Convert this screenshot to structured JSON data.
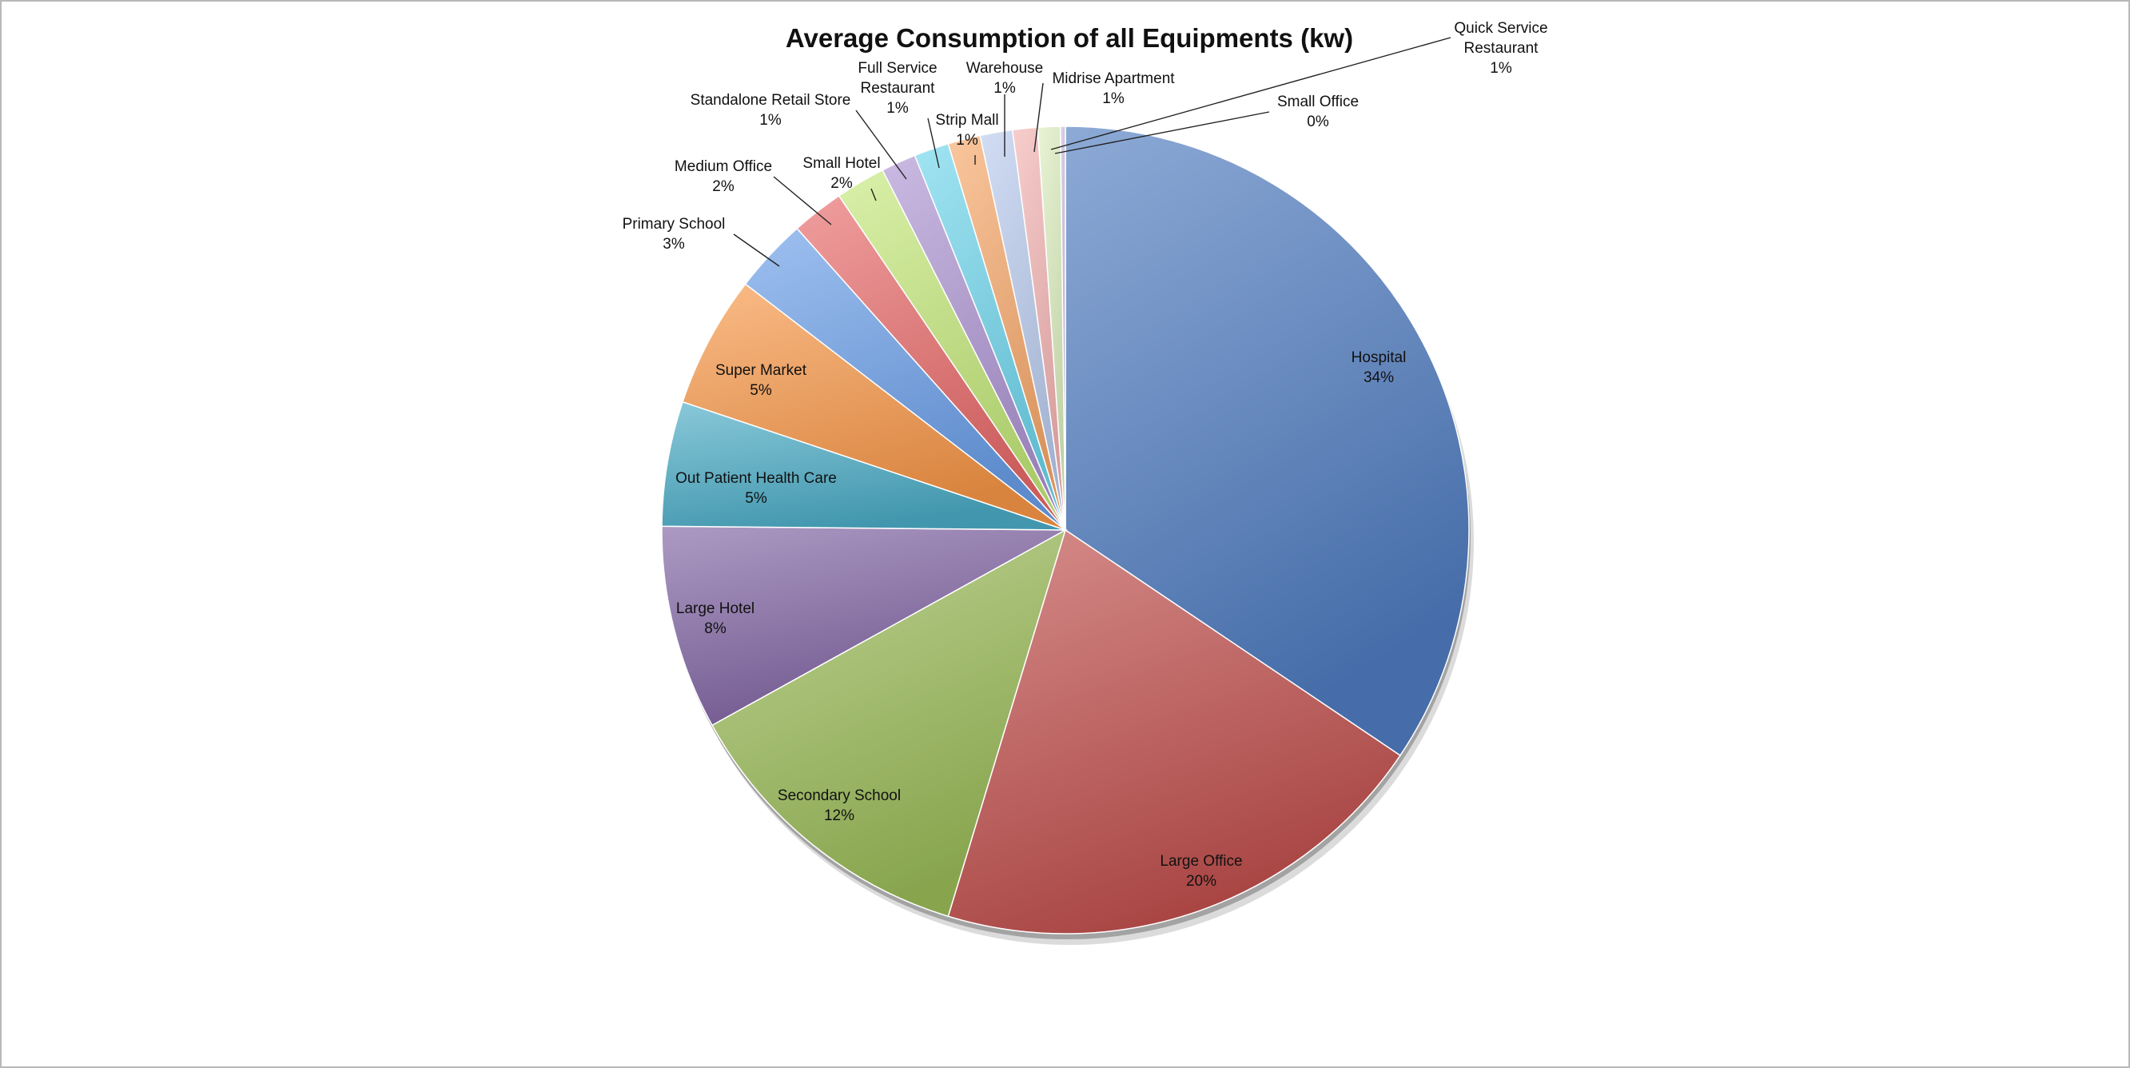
{
  "chart_data": {
    "type": "pie",
    "title": "Average Consumption of all Equipments (kw)",
    "slices": [
      {
        "name": "Hospital",
        "pct_label": "34%",
        "value": 34.5,
        "color": "#4f7cc0"
      },
      {
        "name": "Large Office",
        "pct_label": "20%",
        "value": 20.3,
        "color": "#c0504d"
      },
      {
        "name": "Secondary School",
        "pct_label": "12%",
        "value": 12.3,
        "color": "#9bbb59"
      },
      {
        "name": "Large Hotel",
        "pct_label": "8%",
        "value": 8.2,
        "color": "#8064a2"
      },
      {
        "name": "Out Patient Health Care",
        "pct_label": "5%",
        "value": 5.0,
        "color": "#4bacc6"
      },
      {
        "name": "Super Market",
        "pct_label": "5%",
        "value": 5.3,
        "color": "#f79646"
      },
      {
        "name": "Primary School",
        "pct_label": "3%",
        "value": 3.0,
        "color": "#6a9ee8"
      },
      {
        "name": "Medium Office",
        "pct_label": "2%",
        "value": 2.1,
        "color": "#e86a6a"
      },
      {
        "name": "Small Hotel",
        "pct_label": "2%",
        "value": 2.0,
        "color": "#c4e87a"
      },
      {
        "name": "Standalone Retail Store",
        "pct_label": "1%",
        "value": 1.4,
        "color": "#ae95d2"
      },
      {
        "name": "Full Service Restaurant",
        "pct_label": "1%",
        "value": 1.4,
        "color": "#6fd6ec"
      },
      {
        "name": "Strip Mall",
        "pct_label": "1%",
        "value": 1.3,
        "color": "#f7a86a"
      },
      {
        "name": "Warehouse",
        "pct_label": "1%",
        "value": 1.3,
        "color": "#b9cbee"
      },
      {
        "name": "Midrise Apartment",
        "pct_label": "1%",
        "value": 1.0,
        "color": "#f3b3b2"
      },
      {
        "name": "Quick Service Restaurant",
        "pct_label": "1%",
        "value": 0.9,
        "color": "#dbeebe"
      },
      {
        "name": "Small Office",
        "pct_label": "0%",
        "value": 0.2,
        "color": "#cdbfe0"
      }
    ]
  }
}
